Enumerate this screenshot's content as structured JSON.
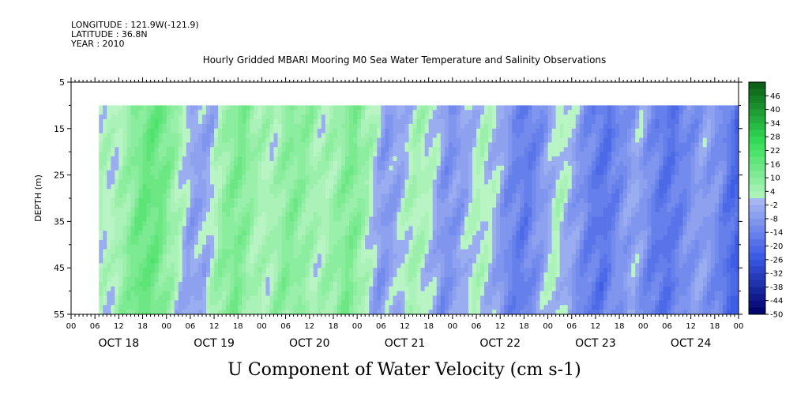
{
  "meta": {
    "longitude": "LONGITUDE : 121.9W(-121.9)",
    "latitude": "LATITUDE : 36.8N",
    "year": "YEAR : 2010"
  },
  "chart_data": {
    "type": "heatmap",
    "title": "Hourly Gridded MBARI Mooring M0 Sea Water Temperature and Salinity Observations",
    "xlabel": "U Component of Water Velocity (cm s-1)",
    "ylabel": "DEPTH (m)",
    "ylim": [
      5,
      55
    ],
    "y_inverted": true,
    "y_ticks": [
      5,
      15,
      25,
      35,
      45,
      55
    ],
    "y_tick_labels": [
      "5",
      "15",
      "25",
      "35",
      "45",
      "55"
    ],
    "data_depth_range": [
      10,
      55
    ],
    "data_start_hour": 7,
    "x_hours_total": 168,
    "hour_tick_labels": [
      "00",
      "06",
      "12",
      "18",
      "00",
      "06",
      "12",
      "18",
      "00",
      "06",
      "12",
      "18",
      "00",
      "06",
      "12",
      "18",
      "00",
      "06",
      "12",
      "18",
      "00",
      "06",
      "12",
      "18",
      "00",
      "06",
      "12",
      "18",
      "00"
    ],
    "day_labels": [
      "OCT 18",
      "OCT 19",
      "OCT 20",
      "OCT 21",
      "OCT 22",
      "OCT 23",
      "OCT 24"
    ],
    "colorbar": {
      "labels": [
        "46",
        "40",
        "34",
        "28",
        "22",
        "16",
        "10",
        "4",
        "-2",
        "-8",
        "-14",
        "-20",
        "-26",
        "-32",
        "-38",
        "-44",
        "-50"
      ],
      "range": [
        -50,
        52
      ],
      "step": 3,
      "colors_high": "#0a5a14",
      "colors_mid_pos": "#9cf0a8",
      "colors_mid_neg": "#a8b8f2",
      "colors_low": "#000066"
    },
    "field_profile_by_hour": [
      [
        7,
        2
      ],
      [
        10,
        0
      ],
      [
        14,
        8
      ],
      [
        18,
        16
      ],
      [
        22,
        14
      ],
      [
        26,
        4
      ],
      [
        30,
        -6
      ],
      [
        34,
        -4
      ],
      [
        38,
        8
      ],
      [
        42,
        12
      ],
      [
        46,
        4
      ],
      [
        50,
        2
      ],
      [
        54,
        10
      ],
      [
        58,
        8
      ],
      [
        62,
        2
      ],
      [
        66,
        6
      ],
      [
        70,
        12
      ],
      [
        74,
        4
      ],
      [
        78,
        -8
      ],
      [
        82,
        -4
      ],
      [
        86,
        4
      ],
      [
        90,
        0
      ],
      [
        94,
        -10
      ],
      [
        98,
        -6
      ],
      [
        102,
        2
      ],
      [
        106,
        -2
      ],
      [
        110,
        -12
      ],
      [
        114,
        -16
      ],
      [
        118,
        -8
      ],
      [
        122,
        2
      ],
      [
        126,
        -6
      ],
      [
        130,
        -14
      ],
      [
        134,
        -18
      ],
      [
        138,
        -10
      ],
      [
        142,
        -4
      ],
      [
        146,
        -14
      ],
      [
        150,
        -18
      ],
      [
        154,
        -12
      ],
      [
        158,
        -6
      ],
      [
        162,
        -10
      ],
      [
        166,
        -20
      ],
      [
        168,
        -22
      ]
    ]
  }
}
